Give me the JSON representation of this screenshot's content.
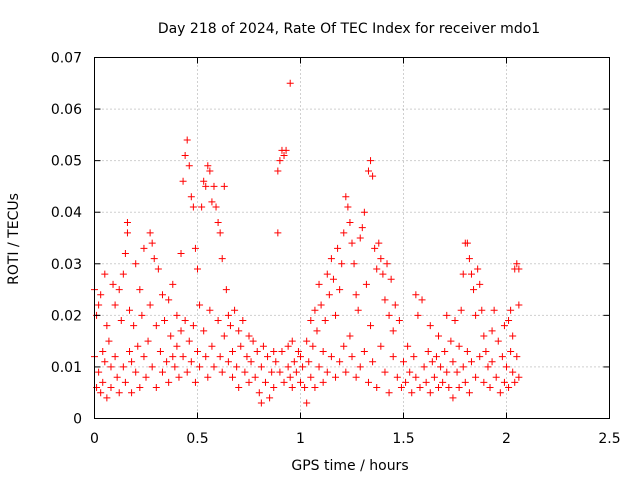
{
  "chart_data": {
    "type": "scatter",
    "title": "Day 218 of 2024, Rate Of TEC Index for receiver mdo1",
    "xlabel": "GPS time / hours",
    "ylabel": "ROTI / TECUs",
    "xlim": [
      0,
      2.5
    ],
    "ylim": [
      0,
      0.07
    ],
    "x_ticks": [
      0,
      0.5,
      1,
      1.5,
      2,
      2.5
    ],
    "x_tick_labels": [
      "0",
      "0.5",
      "1",
      "1.5",
      "2",
      "2.5"
    ],
    "y_ticks": [
      0,
      0.01,
      0.02,
      0.03,
      0.04,
      0.05,
      0.06,
      0.07
    ],
    "y_tick_labels": [
      "0",
      "0.01",
      "0.02",
      "0.03",
      "0.04",
      "0.05",
      "0.06",
      "0.07"
    ],
    "grid": true,
    "marker": "+",
    "marker_color": "#ff0000",
    "series": [
      {
        "name": "ROTI",
        "points": [
          [
            0.0,
            0.025
          ],
          [
            0.0,
            0.012
          ],
          [
            0.01,
            0.02
          ],
          [
            0.01,
            0.006
          ],
          [
            0.02,
            0.022
          ],
          [
            0.02,
            0.009
          ],
          [
            0.03,
            0.024
          ],
          [
            0.03,
            0.005
          ],
          [
            0.04,
            0.013
          ],
          [
            0.04,
            0.007
          ],
          [
            0.05,
            0.028
          ],
          [
            0.05,
            0.011
          ],
          [
            0.06,
            0.018
          ],
          [
            0.06,
            0.004
          ],
          [
            0.07,
            0.015
          ],
          [
            0.08,
            0.01
          ],
          [
            0.08,
            0.006
          ],
          [
            0.09,
            0.026
          ],
          [
            0.1,
            0.022
          ],
          [
            0.1,
            0.012
          ],
          [
            0.11,
            0.008
          ],
          [
            0.12,
            0.025
          ],
          [
            0.12,
            0.005
          ],
          [
            0.13,
            0.019
          ],
          [
            0.14,
            0.028
          ],
          [
            0.14,
            0.01
          ],
          [
            0.15,
            0.032
          ],
          [
            0.15,
            0.007
          ],
          [
            0.16,
            0.038
          ],
          [
            0.16,
            0.036
          ],
          [
            0.17,
            0.021
          ],
          [
            0.17,
            0.013
          ],
          [
            0.18,
            0.011
          ],
          [
            0.18,
            0.005
          ],
          [
            0.19,
            0.018
          ],
          [
            0.2,
            0.03
          ],
          [
            0.2,
            0.009
          ],
          [
            0.21,
            0.014
          ],
          [
            0.22,
            0.025
          ],
          [
            0.22,
            0.006
          ],
          [
            0.23,
            0.02
          ],
          [
            0.24,
            0.012
          ],
          [
            0.24,
            0.033
          ],
          [
            0.25,
            0.008
          ],
          [
            0.26,
            0.015
          ],
          [
            0.27,
            0.036
          ],
          [
            0.27,
            0.022
          ],
          [
            0.28,
            0.034
          ],
          [
            0.28,
            0.01
          ],
          [
            0.29,
            0.031
          ],
          [
            0.3,
            0.018
          ],
          [
            0.3,
            0.006
          ],
          [
            0.31,
            0.029
          ],
          [
            0.32,
            0.013
          ],
          [
            0.33,
            0.024
          ],
          [
            0.33,
            0.009
          ],
          [
            0.34,
            0.019
          ],
          [
            0.35,
            0.011
          ],
          [
            0.36,
            0.023
          ],
          [
            0.36,
            0.007
          ],
          [
            0.37,
            0.016
          ],
          [
            0.38,
            0.026
          ],
          [
            0.38,
            0.012
          ],
          [
            0.39,
            0.01
          ],
          [
            0.4,
            0.02
          ],
          [
            0.4,
            0.014
          ],
          [
            0.41,
            0.008
          ],
          [
            0.42,
            0.032
          ],
          [
            0.42,
            0.017
          ],
          [
            0.43,
            0.046
          ],
          [
            0.43,
            0.012
          ],
          [
            0.44,
            0.051
          ],
          [
            0.44,
            0.019
          ],
          [
            0.45,
            0.054
          ],
          [
            0.45,
            0.009
          ],
          [
            0.46,
            0.049
          ],
          [
            0.46,
            0.015
          ],
          [
            0.47,
            0.043
          ],
          [
            0.47,
            0.011
          ],
          [
            0.48,
            0.041
          ],
          [
            0.48,
            0.018
          ],
          [
            0.49,
            0.033
          ],
          [
            0.49,
            0.007
          ],
          [
            0.5,
            0.029
          ],
          [
            0.5,
            0.013
          ],
          [
            0.51,
            0.022
          ],
          [
            0.51,
            0.01
          ],
          [
            0.52,
            0.041
          ],
          [
            0.53,
            0.046
          ],
          [
            0.53,
            0.017
          ],
          [
            0.54,
            0.045
          ],
          [
            0.54,
            0.012
          ],
          [
            0.55,
            0.049
          ],
          [
            0.55,
            0.008
          ],
          [
            0.56,
            0.048
          ],
          [
            0.56,
            0.021
          ],
          [
            0.57,
            0.042
          ],
          [
            0.57,
            0.014
          ],
          [
            0.58,
            0.045
          ],
          [
            0.58,
            0.01
          ],
          [
            0.59,
            0.041
          ],
          [
            0.6,
            0.038
          ],
          [
            0.6,
            0.019
          ],
          [
            0.61,
            0.036
          ],
          [
            0.61,
            0.012
          ],
          [
            0.62,
            0.031
          ],
          [
            0.62,
            0.009
          ],
          [
            0.63,
            0.045
          ],
          [
            0.63,
            0.016
          ],
          [
            0.64,
            0.025
          ],
          [
            0.65,
            0.02
          ],
          [
            0.65,
            0.011
          ],
          [
            0.66,
            0.018
          ],
          [
            0.67,
            0.013
          ],
          [
            0.67,
            0.008
          ],
          [
            0.68,
            0.021
          ],
          [
            0.69,
            0.01
          ],
          [
            0.7,
            0.017
          ],
          [
            0.7,
            0.006
          ],
          [
            0.71,
            0.014
          ],
          [
            0.72,
            0.019
          ],
          [
            0.73,
            0.009
          ],
          [
            0.74,
            0.012
          ],
          [
            0.75,
            0.016
          ],
          [
            0.75,
            0.007
          ],
          [
            0.76,
            0.011
          ],
          [
            0.77,
            0.015
          ],
          [
            0.78,
            0.008
          ],
          [
            0.79,
            0.013
          ],
          [
            0.8,
            0.005
          ],
          [
            0.81,
            0.01
          ],
          [
            0.81,
            0.003
          ],
          [
            0.82,
            0.014
          ],
          [
            0.83,
            0.007
          ],
          [
            0.84,
            0.012
          ],
          [
            0.85,
            0.004
          ],
          [
            0.86,
            0.009
          ],
          [
            0.87,
            0.013
          ],
          [
            0.87,
            0.006
          ],
          [
            0.88,
            0.011
          ],
          [
            0.89,
            0.036
          ],
          [
            0.89,
            0.048
          ],
          [
            0.9,
            0.05
          ],
          [
            0.9,
            0.009
          ],
          [
            0.91,
            0.052
          ],
          [
            0.91,
            0.013
          ],
          [
            0.92,
            0.051
          ],
          [
            0.92,
            0.007
          ],
          [
            0.93,
            0.052
          ],
          [
            0.94,
            0.014
          ],
          [
            0.94,
            0.01
          ],
          [
            0.95,
            0.065
          ],
          [
            0.95,
            0.008
          ],
          [
            0.96,
            0.015
          ],
          [
            0.96,
            0.006
          ],
          [
            0.97,
            0.011
          ],
          [
            0.98,
            0.009
          ],
          [
            0.99,
            0.013
          ],
          [
            1.0,
            0.007
          ],
          [
            1.0,
            0.012
          ],
          [
            1.01,
            0.01
          ],
          [
            1.02,
            0.006
          ],
          [
            1.03,
            0.015
          ],
          [
            1.03,
            0.003
          ],
          [
            1.04,
            0.011
          ],
          [
            1.05,
            0.019
          ],
          [
            1.05,
            0.008
          ],
          [
            1.06,
            0.014
          ],
          [
            1.07,
            0.021
          ],
          [
            1.07,
            0.006
          ],
          [
            1.08,
            0.017
          ],
          [
            1.09,
            0.026
          ],
          [
            1.09,
            0.01
          ],
          [
            1.1,
            0.022
          ],
          [
            1.11,
            0.013
          ],
          [
            1.11,
            0.007
          ],
          [
            1.12,
            0.019
          ],
          [
            1.13,
            0.028
          ],
          [
            1.13,
            0.009
          ],
          [
            1.14,
            0.024
          ],
          [
            1.15,
            0.031
          ],
          [
            1.15,
            0.012
          ],
          [
            1.16,
            0.027
          ],
          [
            1.17,
            0.02
          ],
          [
            1.17,
            0.008
          ],
          [
            1.18,
            0.033
          ],
          [
            1.19,
            0.025
          ],
          [
            1.19,
            0.011
          ],
          [
            1.2,
            0.03
          ],
          [
            1.21,
            0.036
          ],
          [
            1.21,
            0.014
          ],
          [
            1.22,
            0.043
          ],
          [
            1.22,
            0.009
          ],
          [
            1.23,
            0.041
          ],
          [
            1.24,
            0.038
          ],
          [
            1.24,
            0.016
          ],
          [
            1.25,
            0.034
          ],
          [
            1.25,
            0.012
          ],
          [
            1.26,
            0.03
          ],
          [
            1.27,
            0.024
          ],
          [
            1.27,
            0.008
          ],
          [
            1.28,
            0.021
          ],
          [
            1.29,
            0.035
          ],
          [
            1.29,
            0.01
          ],
          [
            1.3,
            0.037
          ],
          [
            1.31,
            0.04
          ],
          [
            1.31,
            0.013
          ],
          [
            1.32,
            0.026
          ],
          [
            1.33,
            0.048
          ],
          [
            1.33,
            0.007
          ],
          [
            1.34,
            0.05
          ],
          [
            1.34,
            0.018
          ],
          [
            1.35,
            0.047
          ],
          [
            1.35,
            0.011
          ],
          [
            1.36,
            0.033
          ],
          [
            1.37,
            0.029
          ],
          [
            1.37,
            0.006
          ],
          [
            1.38,
            0.034
          ],
          [
            1.39,
            0.031
          ],
          [
            1.39,
            0.014
          ],
          [
            1.4,
            0.028
          ],
          [
            1.41,
            0.023
          ],
          [
            1.41,
            0.009
          ],
          [
            1.42,
            0.03
          ],
          [
            1.43,
            0.02
          ],
          [
            1.43,
            0.005
          ],
          [
            1.44,
            0.027
          ],
          [
            1.45,
            0.017
          ],
          [
            1.45,
            0.012
          ],
          [
            1.46,
            0.022
          ],
          [
            1.47,
            0.008
          ],
          [
            1.48,
            0.019
          ],
          [
            1.49,
            0.006
          ],
          [
            1.5,
            0.011
          ],
          [
            1.51,
            0.007
          ],
          [
            1.52,
            0.014
          ],
          [
            1.53,
            0.009
          ],
          [
            1.54,
            0.005
          ],
          [
            1.55,
            0.012
          ],
          [
            1.56,
            0.024
          ],
          [
            1.56,
            0.008
          ],
          [
            1.57,
            0.02
          ],
          [
            1.58,
            0.006
          ],
          [
            1.59,
            0.023
          ],
          [
            1.6,
            0.01
          ],
          [
            1.61,
            0.007
          ],
          [
            1.62,
            0.013
          ],
          [
            1.63,
            0.018
          ],
          [
            1.63,
            0.005
          ],
          [
            1.64,
            0.011
          ],
          [
            1.65,
            0.008
          ],
          [
            1.66,
            0.012
          ],
          [
            1.67,
            0.016
          ],
          [
            1.67,
            0.006
          ],
          [
            1.68,
            0.01
          ],
          [
            1.69,
            0.007
          ],
          [
            1.7,
            0.013
          ],
          [
            1.71,
            0.02
          ],
          [
            1.71,
            0.009
          ],
          [
            1.72,
            0.006
          ],
          [
            1.73,
            0.015
          ],
          [
            1.74,
            0.011
          ],
          [
            1.74,
            0.004
          ],
          [
            1.75,
            0.019
          ],
          [
            1.76,
            0.009
          ],
          [
            1.77,
            0.014
          ],
          [
            1.77,
            0.006
          ],
          [
            1.78,
            0.021
          ],
          [
            1.79,
            0.028
          ],
          [
            1.79,
            0.01
          ],
          [
            1.8,
            0.034
          ],
          [
            1.8,
            0.007
          ],
          [
            1.81,
            0.034
          ],
          [
            1.81,
            0.013
          ],
          [
            1.82,
            0.031
          ],
          [
            1.82,
            0.005
          ],
          [
            1.83,
            0.028
          ],
          [
            1.83,
            0.011
          ],
          [
            1.84,
            0.025
          ],
          [
            1.85,
            0.02
          ],
          [
            1.85,
            0.008
          ],
          [
            1.86,
            0.029
          ],
          [
            1.87,
            0.026
          ],
          [
            1.87,
            0.012
          ],
          [
            1.88,
            0.021
          ],
          [
            1.89,
            0.016
          ],
          [
            1.89,
            0.007
          ],
          [
            1.9,
            0.013
          ],
          [
            1.91,
            0.01
          ],
          [
            1.92,
            0.006
          ],
          [
            1.93,
            0.017
          ],
          [
            1.93,
            0.011
          ],
          [
            1.94,
            0.021
          ],
          [
            1.95,
            0.008
          ],
          [
            1.96,
            0.015
          ],
          [
            1.97,
            0.005
          ],
          [
            1.98,
            0.012
          ],
          [
            1.99,
            0.018
          ],
          [
            1.99,
            0.007
          ],
          [
            2.0,
            0.01
          ],
          [
            2.01,
            0.019
          ],
          [
            2.01,
            0.006
          ],
          [
            2.02,
            0.013
          ],
          [
            2.02,
            0.021
          ],
          [
            2.03,
            0.016
          ],
          [
            2.03,
            0.009
          ],
          [
            2.04,
            0.029
          ],
          [
            2.04,
            0.007
          ],
          [
            2.05,
            0.03
          ],
          [
            2.05,
            0.012
          ],
          [
            2.06,
            0.029
          ],
          [
            2.06,
            0.022
          ],
          [
            2.06,
            0.008
          ]
        ]
      }
    ]
  }
}
